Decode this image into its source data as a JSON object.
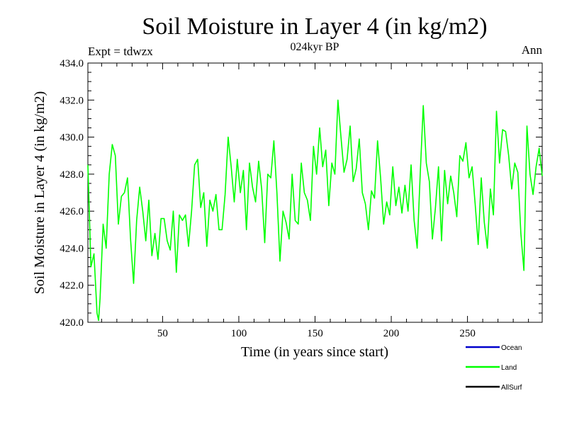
{
  "chart_data": {
    "type": "line",
    "title": "Soil Moisture in Layer 4 (in kg/m2)",
    "subtitle": "024kyr BP",
    "left_note": "Expt = tdwzx",
    "right_note": "Ann",
    "xlabel": "Time (in years since start)",
    "ylabel": "Soil Moisture in Layer 4 (in kg/m2)",
    "xlim": [
      1,
      299
    ],
    "ylim": [
      420,
      434
    ],
    "x_ticks": [
      50,
      100,
      150,
      200,
      250
    ],
    "x_tick_labels": [
      "50",
      "100",
      "150",
      "200",
      "250"
    ],
    "y_ticks": [
      420,
      422,
      424,
      426,
      428,
      430,
      432,
      434
    ],
    "y_tick_labels": [
      "420.0",
      "422.0",
      "424.0",
      "426.0",
      "428.0",
      "430.0",
      "432.0",
      "434.0"
    ],
    "grid": false,
    "legend_position": "bottom-right",
    "series": [
      {
        "name": "Ocean",
        "color": "#0000cc",
        "x": [],
        "values": []
      },
      {
        "name": "Land",
        "color": "#00ff00",
        "x": [
          1,
          3,
          5,
          7,
          8,
          9,
          11,
          13,
          15,
          17,
          19,
          21,
          23,
          25,
          27,
          29,
          31,
          33,
          35,
          37,
          39,
          41,
          43,
          45,
          47,
          49,
          51,
          53,
          55,
          57,
          59,
          61,
          63,
          65,
          67,
          69,
          71,
          73,
          75,
          77,
          79,
          81,
          83,
          85,
          87,
          89,
          91,
          93,
          95,
          97,
          99,
          101,
          103,
          105,
          107,
          109,
          111,
          113,
          115,
          117,
          119,
          121,
          123,
          125,
          127,
          129,
          131,
          133,
          135,
          137,
          139,
          141,
          143,
          145,
          147,
          149,
          151,
          153,
          155,
          157,
          159,
          161,
          163,
          165,
          167,
          169,
          171,
          173,
          175,
          177,
          179,
          181,
          183,
          185,
          187,
          189,
          191,
          193,
          195,
          197,
          199,
          201,
          203,
          205,
          207,
          209,
          211,
          213,
          215,
          217,
          219,
          221,
          223,
          225,
          227,
          229,
          231,
          233,
          235,
          237,
          239,
          241,
          243,
          245,
          247,
          249,
          251,
          253,
          255,
          257,
          259,
          261,
          263,
          265,
          267,
          269,
          271,
          273,
          275,
          277,
          279,
          281,
          283,
          285,
          287,
          289,
          291,
          293,
          295,
          297,
          299
        ],
        "values": [
          428.5,
          423.0,
          423.7,
          420.5,
          420.1,
          421.3,
          425.3,
          424.0,
          428.0,
          429.6,
          429.0,
          425.3,
          426.8,
          427.0,
          427.8,
          424.5,
          422.1,
          425.5,
          427.3,
          426.0,
          424.4,
          426.6,
          423.6,
          424.8,
          423.4,
          425.6,
          425.6,
          424.4,
          423.9,
          426.0,
          422.7,
          425.8,
          425.5,
          425.8,
          424.1,
          426.0,
          428.5,
          428.8,
          426.2,
          427.0,
          424.1,
          426.6,
          426.0,
          426.9,
          425.0,
          425.0,
          426.9,
          430.0,
          428.4,
          426.5,
          428.8,
          427.0,
          428.2,
          425.0,
          428.6,
          427.3,
          426.5,
          428.7,
          427.2,
          424.3,
          428.0,
          427.8,
          429.8,
          427.0,
          423.3,
          426.0,
          425.4,
          424.5,
          428.0,
          425.5,
          425.3,
          428.6,
          427.0,
          426.6,
          425.5,
          429.5,
          428.0,
          430.5,
          428.4,
          429.3,
          426.3,
          428.6,
          428.0,
          432.0,
          430.0,
          428.1,
          428.8,
          430.6,
          427.6,
          428.3,
          429.9,
          427.0,
          426.4,
          425.0,
          427.1,
          426.7,
          429.8,
          427.8,
          425.3,
          426.5,
          425.8,
          428.4,
          426.3,
          427.3,
          425.9,
          427.4,
          426.0,
          428.5,
          425.5,
          424.0,
          428.0,
          431.7,
          428.6,
          427.6,
          424.5,
          426.2,
          428.4,
          424.4,
          428.2,
          426.4,
          427.9,
          427.0,
          425.7,
          429.0,
          428.7,
          429.7,
          427.8,
          428.4,
          426.4,
          424.2,
          427.8,
          425.4,
          424.0,
          427.2,
          425.8,
          431.4,
          428.6,
          430.4,
          430.3,
          429.0,
          427.2,
          428.6,
          428.1,
          424.8,
          422.8,
          430.6,
          428.0,
          426.9,
          428.4,
          429.4,
          427.9
        ]
      },
      {
        "name": "AllSurf",
        "color": "#000000",
        "x": [],
        "values": []
      }
    ]
  }
}
